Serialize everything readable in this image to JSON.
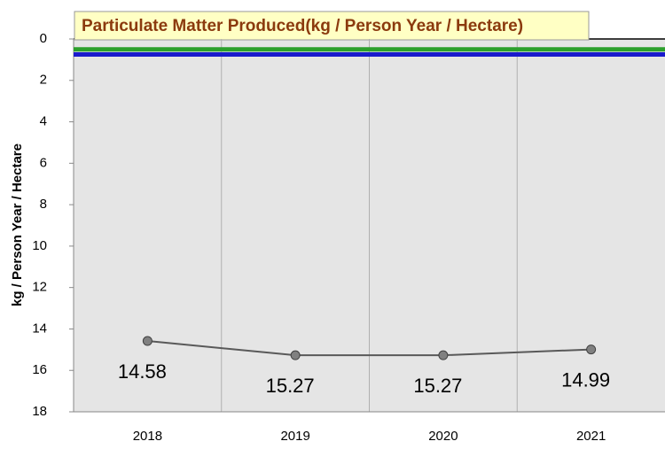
{
  "chart_data": {
    "type": "line",
    "title": "Particulate Matter Produced(kg / Person Year / Hectare)",
    "y_label": "kg / Person Year / Hectare",
    "categories": [
      "2018",
      "2019",
      "2020",
      "2021"
    ],
    "series": [
      {
        "color": "#595959",
        "values": [
          14.58,
          15.27,
          15.27,
          14.99
        ]
      }
    ],
    "reference_lines": [
      {
        "value": 0.5,
        "color": "#2ca02c"
      },
      {
        "value": 0.75,
        "color": "#1a1acc"
      }
    ],
    "ylim": [
      0,
      18
    ],
    "yticks": [
      0,
      2,
      4,
      6,
      8,
      10,
      12,
      14,
      16,
      18
    ],
    "y_inverted": true
  }
}
